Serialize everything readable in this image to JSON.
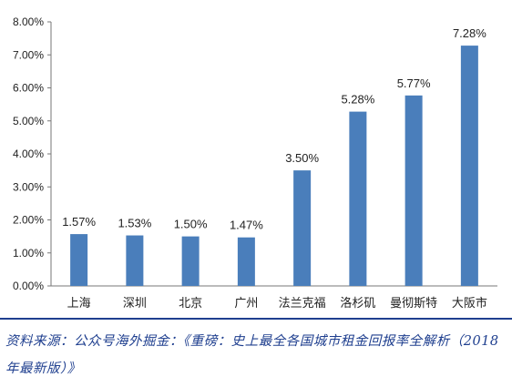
{
  "chart_data": {
    "type": "bar",
    "categories": [
      "上海",
      "深圳",
      "北京",
      "广州",
      "法兰克福",
      "洛杉矶",
      "曼彻斯特",
      "大阪市"
    ],
    "values": [
      1.57,
      1.53,
      1.5,
      1.47,
      3.5,
      5.28,
      5.77,
      7.28
    ],
    "value_labels": [
      "1.57%",
      "1.53%",
      "1.50%",
      "1.47%",
      "3.50%",
      "5.28%",
      "5.77%",
      "7.28%"
    ],
    "ylim": [
      0,
      8
    ],
    "yticks": [
      "0.00%",
      "1.00%",
      "2.00%",
      "3.00%",
      "4.00%",
      "5.00%",
      "6.00%",
      "7.00%",
      "8.00%"
    ],
    "bar_color": "#4a7ebb",
    "grid": false,
    "title": "",
    "xlabel": "",
    "ylabel": ""
  },
  "source": {
    "text": "资料来源：公众号海外掘金：《重磅：史上最全各国城市租金回报率全解析（2018 年最新版）》"
  }
}
